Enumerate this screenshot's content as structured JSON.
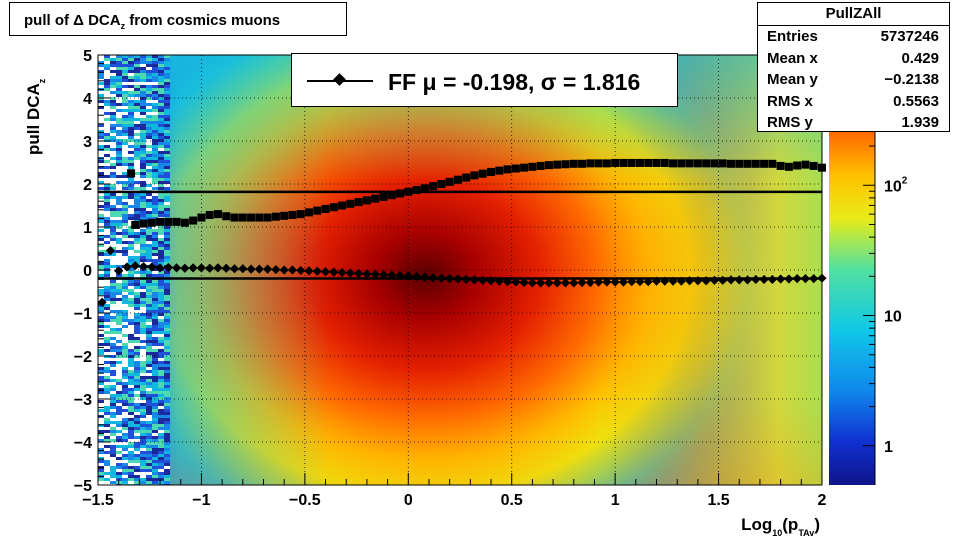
{
  "title": {
    "text": "pull of Δ DCA",
    "sub": "z",
    "rest": " from cosmics muons"
  },
  "stats_box": {
    "name": "PullZAll",
    "rows": [
      {
        "label": "Entries",
        "value": "5737246"
      },
      {
        "label": "Mean x",
        "value": "0.429"
      },
      {
        "label": "Mean y",
        "value": "−0.2138"
      },
      {
        "label": "RMS x",
        "value": "0.5563"
      },
      {
        "label": "RMS y",
        "value": "1.939"
      }
    ]
  },
  "legend": {
    "text": "FF μ = -0.198, σ =   1.816"
  },
  "axes": {
    "ylabel": "pull DCA",
    "ylabel_sub": "z",
    "xlabel": "Log",
    "xlabel_sub": "10",
    "xlabel_mid": "(p",
    "xlabel_sub2": "TAv",
    "xlabel_end": ")"
  },
  "colors": {
    "fit_line": "#000000",
    "markers": "#000000",
    "frame": "#000000"
  },
  "chart_data": {
    "type": "heatmap",
    "xlim": [
      -1.5,
      2.0
    ],
    "ylim": [
      -5,
      5
    ],
    "x_ticks": [
      {
        "v": -1.5,
        "label": "−1.5"
      },
      {
        "v": -1.0,
        "label": "−1"
      },
      {
        "v": -0.5,
        "label": "−0.5"
      },
      {
        "v": 0.0,
        "label": "0"
      },
      {
        "v": 0.5,
        "label": "0.5"
      },
      {
        "v": 1.0,
        "label": "1"
      },
      {
        "v": 1.5,
        "label": "1.5"
      },
      {
        "v": 2.0,
        "label": "2"
      }
    ],
    "y_ticks": [
      {
        "v": 5,
        "label": "5"
      },
      {
        "v": 4,
        "label": "4"
      },
      {
        "v": 3,
        "label": "3"
      },
      {
        "v": 2,
        "label": "2"
      },
      {
        "v": 1,
        "label": "1"
      },
      {
        "v": 0,
        "label": "0"
      },
      {
        "v": -1,
        "label": "−1"
      },
      {
        "v": -2,
        "label": "−2"
      },
      {
        "v": -3,
        "label": "−3"
      },
      {
        "v": -4,
        "label": "−4"
      },
      {
        "v": -5,
        "label": "−5"
      }
    ],
    "z_scale": "log",
    "z_ticks": [
      {
        "v": 1,
        "label": "1"
      },
      {
        "v": 10,
        "label": "10"
      },
      {
        "v": 100,
        "label": "10",
        "sup": "2"
      }
    ],
    "horizontal_lines": [
      {
        "name": "sigma",
        "y": 1.816
      },
      {
        "name": "mu",
        "y": -0.198
      }
    ],
    "series": [
      {
        "marker": "diamond",
        "x": [
          -1.48,
          -1.44,
          -1.4,
          -1.36,
          -1.32,
          -1.28,
          -1.24,
          -1.2,
          -1.16,
          -1.12,
          -1.08,
          -1.04,
          -1.0,
          -0.96,
          -0.92,
          -0.88,
          -0.84,
          -0.8,
          -0.76,
          -0.72,
          -0.68,
          -0.64,
          -0.6,
          -0.56,
          -0.52,
          -0.48,
          -0.44,
          -0.4,
          -0.36,
          -0.32,
          -0.28,
          -0.24,
          -0.2,
          -0.16,
          -0.12,
          -0.08,
          -0.04,
          0.0,
          0.04,
          0.08,
          0.12,
          0.16,
          0.2,
          0.24,
          0.28,
          0.32,
          0.36,
          0.4,
          0.44,
          0.48,
          0.52,
          0.56,
          0.6,
          0.64,
          0.68,
          0.72,
          0.76,
          0.8,
          0.84,
          0.88,
          0.92,
          0.96,
          1.0,
          1.04,
          1.08,
          1.12,
          1.16,
          1.2,
          1.24,
          1.28,
          1.32,
          1.36,
          1.4,
          1.44,
          1.48,
          1.52,
          1.56,
          1.6,
          1.64,
          1.68,
          1.72,
          1.76,
          1.8,
          1.84,
          1.88,
          1.92,
          1.96,
          2.0
        ],
        "y": [
          -0.75,
          0.45,
          -0.02,
          0.07,
          0.1,
          0.08,
          0.07,
          0.05,
          0.06,
          0.05,
          0.04,
          0.05,
          0.05,
          0.04,
          0.05,
          0.04,
          0.03,
          0.03,
          0.02,
          0.02,
          0.02,
          0.01,
          0.0,
          0.0,
          -0.01,
          -0.02,
          -0.03,
          -0.04,
          -0.05,
          -0.06,
          -0.07,
          -0.08,
          -0.09,
          -0.1,
          -0.11,
          -0.12,
          -0.13,
          -0.14,
          -0.15,
          -0.17,
          -0.18,
          -0.19,
          -0.2,
          -0.21,
          -0.22,
          -0.23,
          -0.24,
          -0.25,
          -0.26,
          -0.27,
          -0.28,
          -0.29,
          -0.3,
          -0.3,
          -0.3,
          -0.3,
          -0.3,
          -0.3,
          -0.29,
          -0.29,
          -0.28,
          -0.28,
          -0.28,
          -0.28,
          -0.27,
          -0.27,
          -0.27,
          -0.26,
          -0.26,
          -0.26,
          -0.26,
          -0.25,
          -0.25,
          -0.25,
          -0.24,
          -0.24,
          -0.23,
          -0.23,
          -0.23,
          -0.22,
          -0.22,
          -0.22,
          -0.21,
          -0.21,
          -0.2,
          -0.2,
          -0.2,
          -0.19
        ]
      },
      {
        "marker": "square",
        "x": [
          -1.32,
          -1.28,
          -1.24,
          -1.2,
          -1.16,
          -1.12,
          -1.08,
          -1.04,
          -1.0,
          -0.96,
          -0.92,
          -0.88,
          -0.84,
          -0.8,
          -0.76,
          -0.72,
          -0.68,
          -0.64,
          -0.6,
          -0.56,
          -0.52,
          -0.48,
          -0.44,
          -0.4,
          -0.36,
          -0.32,
          -0.28,
          -0.24,
          -0.2,
          -0.16,
          -0.12,
          -0.08,
          -0.04,
          0.0,
          0.04,
          0.08,
          0.12,
          0.16,
          0.2,
          0.24,
          0.28,
          0.32,
          0.36,
          0.4,
          0.44,
          0.48,
          0.52,
          0.56,
          0.6,
          0.64,
          0.68,
          0.72,
          0.76,
          0.8,
          0.84,
          0.88,
          0.92,
          0.96,
          1.0,
          1.04,
          1.08,
          1.12,
          1.16,
          1.2,
          1.24,
          1.28,
          1.32,
          1.36,
          1.4,
          1.44,
          1.48,
          1.52,
          1.56,
          1.6,
          1.64,
          1.68,
          1.72,
          1.76,
          1.8,
          1.84,
          1.88,
          1.92,
          1.96,
          2.0
        ],
        "y": [
          1.05,
          1.08,
          1.1,
          1.12,
          1.12,
          1.12,
          1.1,
          1.15,
          1.22,
          1.28,
          1.3,
          1.25,
          1.22,
          1.22,
          1.22,
          1.22,
          1.22,
          1.24,
          1.26,
          1.28,
          1.3,
          1.34,
          1.38,
          1.42,
          1.46,
          1.5,
          1.54,
          1.58,
          1.62,
          1.66,
          1.7,
          1.74,
          1.78,
          1.82,
          1.86,
          1.9,
          1.95,
          2.0,
          2.05,
          2.1,
          2.15,
          2.2,
          2.24,
          2.28,
          2.31,
          2.34,
          2.36,
          2.38,
          2.4,
          2.42,
          2.44,
          2.45,
          2.46,
          2.47,
          2.47,
          2.48,
          2.48,
          2.48,
          2.49,
          2.49,
          2.49,
          2.49,
          2.49,
          2.49,
          2.49,
          2.48,
          2.48,
          2.48,
          2.48,
          2.48,
          2.48,
          2.48,
          2.47,
          2.47,
          2.47,
          2.47,
          2.47,
          2.47,
          2.42,
          2.4,
          2.43,
          2.45,
          2.42,
          2.38
        ]
      }
    ],
    "extra_points": [
      {
        "x": -1.34,
        "y": 2.25,
        "marker": "square"
      }
    ]
  }
}
